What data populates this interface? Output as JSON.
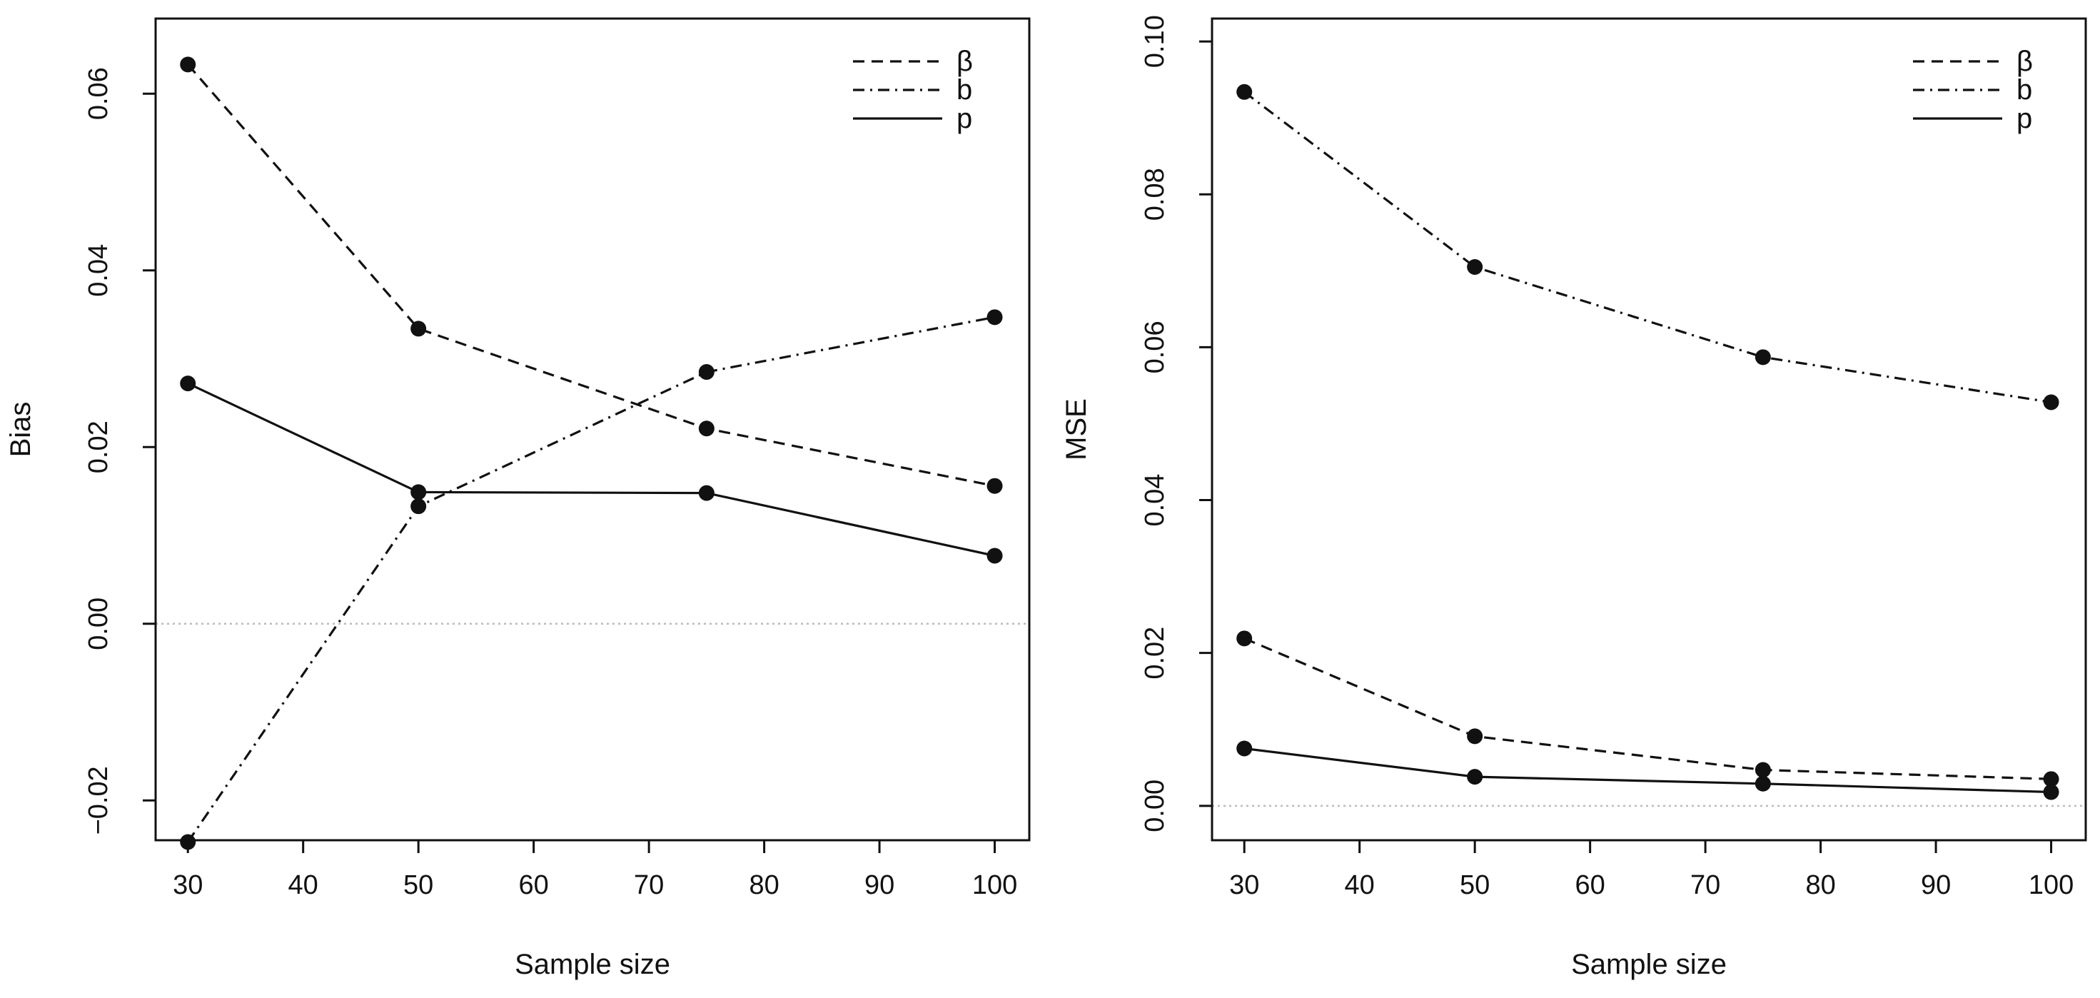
{
  "chart_data": [
    {
      "type": "line",
      "title": "",
      "xlabel": "Sample size",
      "ylabel": "Bias",
      "x": [
        30,
        50,
        75,
        100
      ],
      "xlim": [
        27.2,
        103
      ],
      "ylim": [
        -0.0245,
        0.0685
      ],
      "xticks": [
        30,
        40,
        50,
        60,
        70,
        80,
        90,
        100
      ],
      "xtick_labels": [
        "30",
        "40",
        "50",
        "60",
        "70",
        "80",
        "90",
        "100"
      ],
      "yticks": [
        -0.02,
        0.0,
        0.02,
        0.04,
        0.06
      ],
      "ytick_labels": [
        "−0.02",
        "0.00",
        "0.02",
        "0.04",
        "0.06"
      ],
      "reference_line": 0.0,
      "legend_position": "top-right",
      "series": [
        {
          "name": "β",
          "linestyle": "dashed",
          "values": [
            0.0633,
            0.0334,
            0.0221,
            0.0156
          ]
        },
        {
          "name": "b",
          "linestyle": "dashdot",
          "values": [
            -0.0247,
            0.0133,
            0.0285,
            0.0347
          ]
        },
        {
          "name": "p",
          "linestyle": "solid",
          "values": [
            0.0272,
            0.0149,
            0.0148,
            0.0077
          ]
        }
      ]
    },
    {
      "type": "line",
      "title": "",
      "xlabel": "Sample size",
      "ylabel": "MSE",
      "x": [
        30,
        50,
        75,
        100
      ],
      "xlim": [
        27.2,
        103
      ],
      "ylim": [
        -0.0045,
        0.103
      ],
      "xticks": [
        30,
        40,
        50,
        60,
        70,
        80,
        90,
        100
      ],
      "xtick_labels": [
        "30",
        "40",
        "50",
        "60",
        "70",
        "80",
        "90",
        "100"
      ],
      "yticks": [
        0.0,
        0.02,
        0.04,
        0.06,
        0.08,
        0.1
      ],
      "ytick_labels": [
        "0.00",
        "0.02",
        "0.04",
        "0.06",
        "0.08",
        "0.10"
      ],
      "reference_line": 0.0,
      "legend_position": "top-right",
      "series": [
        {
          "name": "β",
          "linestyle": "dashed",
          "values": [
            0.0219,
            0.0091,
            0.0047,
            0.0035
          ]
        },
        {
          "name": "b",
          "linestyle": "dashdot",
          "values": [
            0.0934,
            0.0705,
            0.0587,
            0.0528
          ]
        },
        {
          "name": "p",
          "linestyle": "solid",
          "values": [
            0.0075,
            0.0038,
            0.0029,
            0.0018
          ]
        }
      ]
    }
  ]
}
